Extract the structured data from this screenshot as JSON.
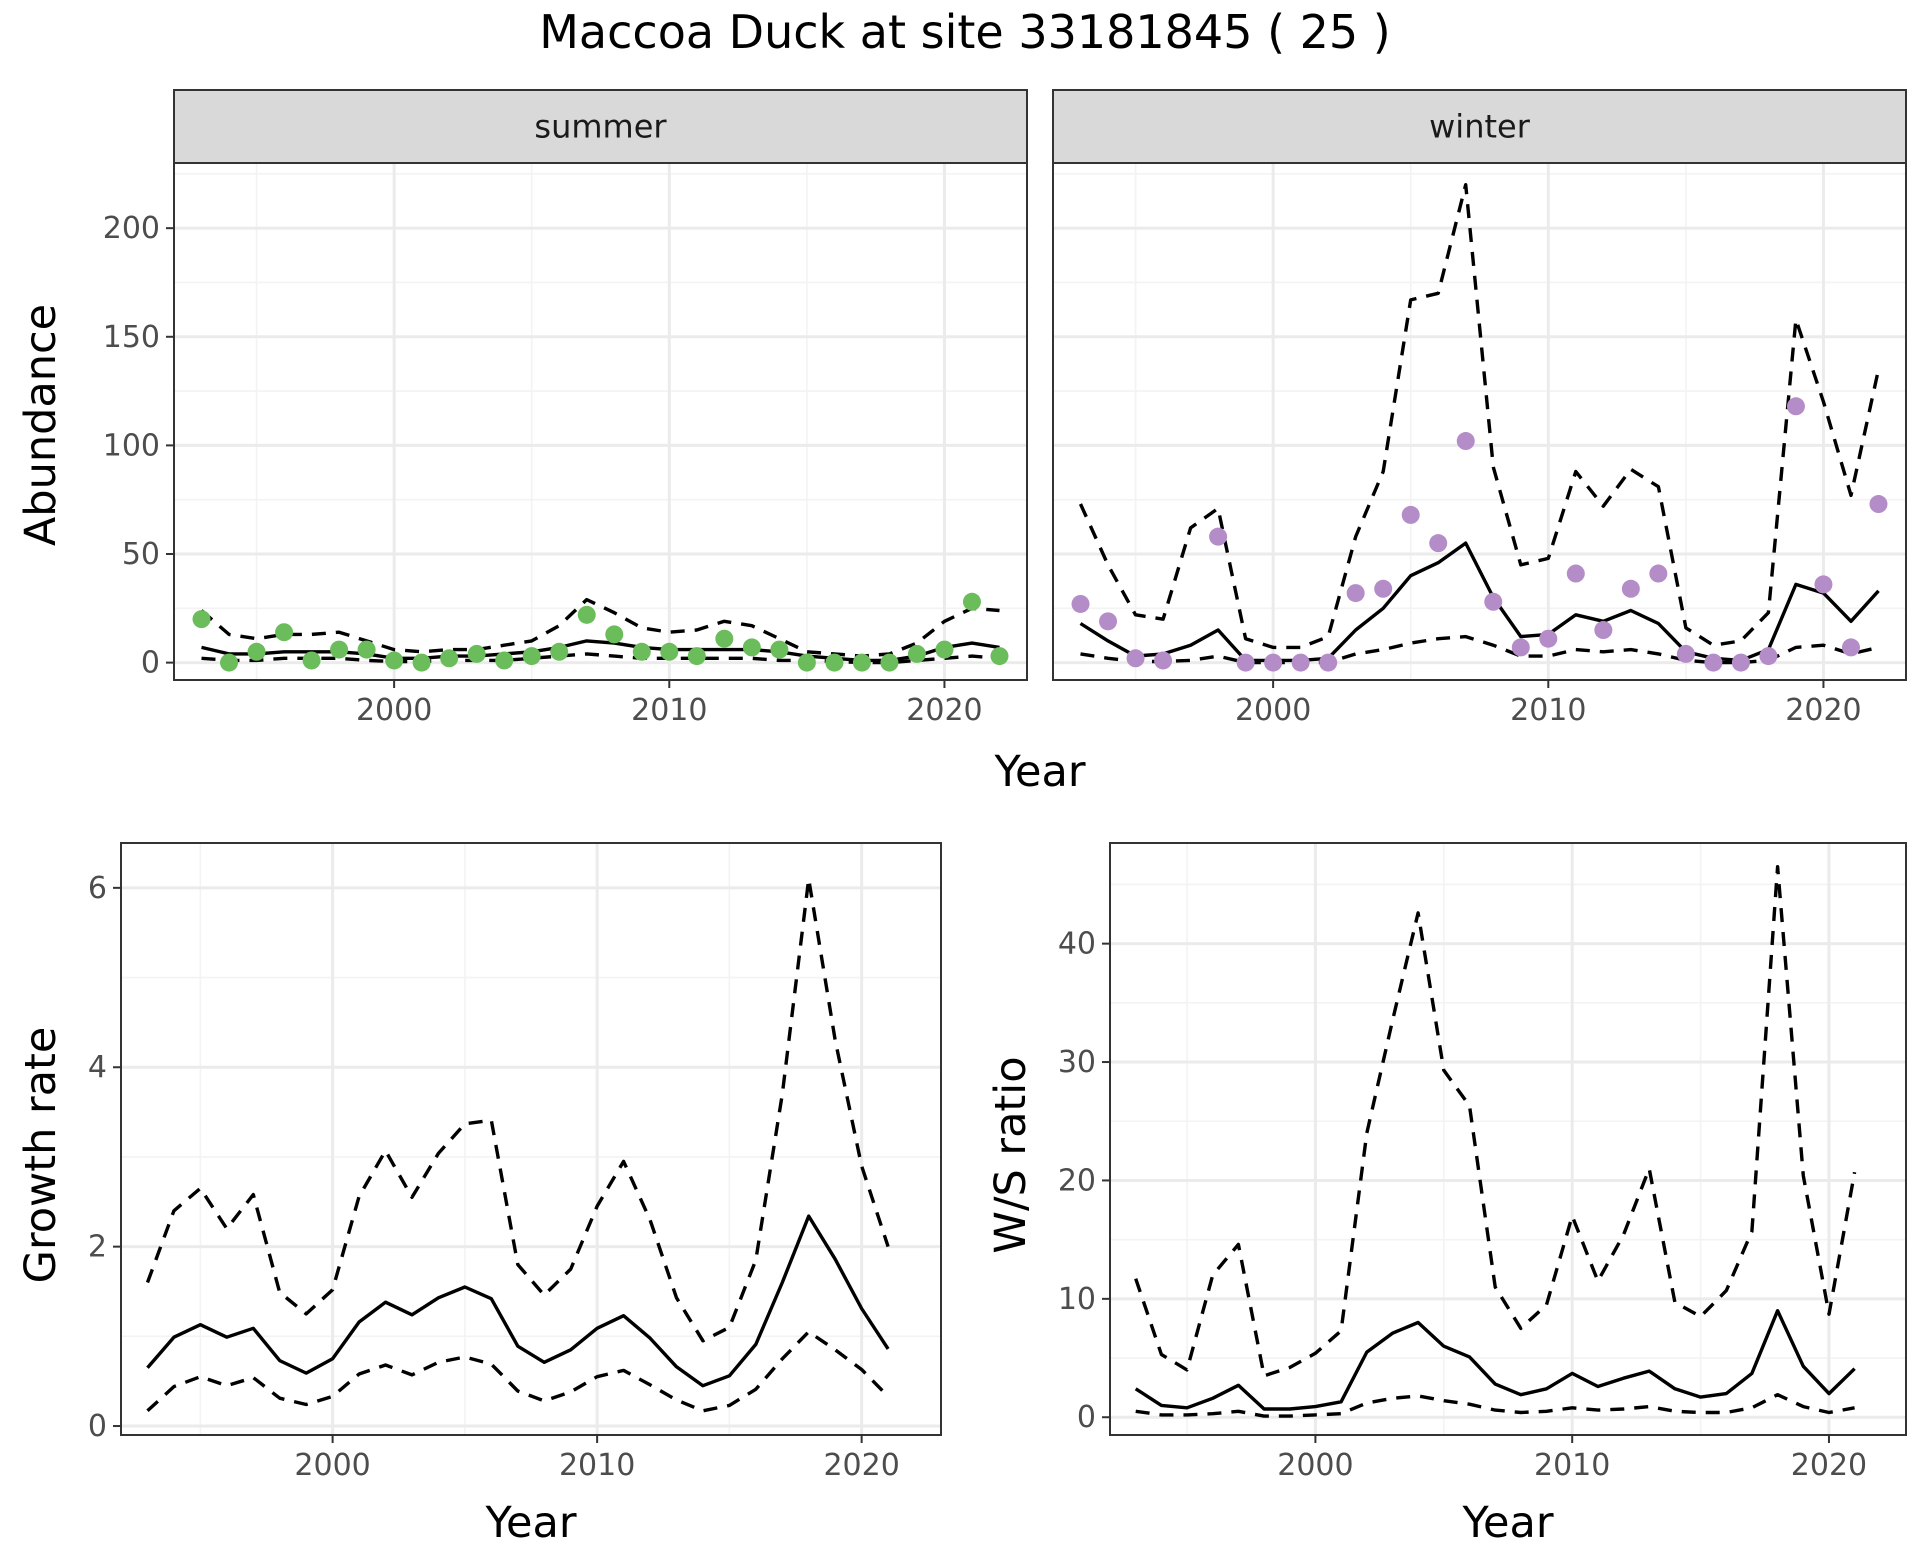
{
  "figure_title": "Maccoa Duck at site 33181845 ( 25 )",
  "colors": {
    "summer_points": "#6abd5a",
    "winter_points": "#b48cc8",
    "lines": "#000000"
  },
  "chart_data": [
    {
      "id": "abundance-summer",
      "type": "line",
      "strip": "summer",
      "xlabel": "Year",
      "ylabel": "Abundance",
      "xlim": [
        1992,
        2023
      ],
      "ylim": [
        -8,
        230
      ],
      "xticks": [
        2000,
        2010,
        2020
      ],
      "yticks": [
        0,
        50,
        100,
        150,
        200
      ],
      "grid": true,
      "x": [
        1993,
        1994,
        1995,
        1996,
        1997,
        1998,
        1999,
        2000,
        2001,
        2002,
        2003,
        2004,
        2005,
        2006,
        2007,
        2008,
        2009,
        2010,
        2011,
        2012,
        2013,
        2014,
        2015,
        2016,
        2017,
        2018,
        2019,
        2020,
        2021,
        2022
      ],
      "series": [
        {
          "role": "estimate",
          "style": "solid",
          "values": [
            7,
            4,
            4,
            5,
            5,
            5,
            4,
            2,
            2,
            3,
            3,
            4,
            5,
            7,
            10,
            9,
            7,
            6,
            6,
            6,
            6,
            5,
            3,
            2,
            1,
            1,
            3,
            7,
            9,
            7
          ]
        },
        {
          "role": "upper",
          "style": "dashed",
          "values": [
            24,
            13,
            11,
            13,
            13,
            14,
            10,
            6,
            5,
            6,
            6,
            8,
            10,
            17,
            29,
            23,
            16,
            14,
            15,
            19,
            17,
            11,
            5,
            4,
            3,
            4,
            9,
            19,
            25,
            24
          ]
        },
        {
          "role": "lower",
          "style": "dashed",
          "values": [
            2,
            1,
            1,
            2,
            2,
            2,
            1,
            0.5,
            0.5,
            1,
            1,
            1,
            2,
            3,
            4,
            3,
            2,
            2,
            2,
            2,
            2,
            1,
            1,
            0.5,
            0,
            0,
            1,
            2,
            3,
            2
          ]
        },
        {
          "role": "observed",
          "style": "points",
          "values": [
            20,
            0,
            5,
            14,
            1,
            6,
            6,
            1,
            0,
            2,
            4,
            1,
            3,
            5,
            22,
            13,
            5,
            5,
            3,
            11,
            7,
            6,
            0,
            0,
            0,
            0,
            4,
            6,
            28,
            3
          ]
        }
      ]
    },
    {
      "id": "abundance-winter",
      "type": "line",
      "strip": "winter",
      "xlabel": "Year",
      "ylabel": "Abundance",
      "xlim": [
        1992,
        2023
      ],
      "ylim": [
        -8,
        230
      ],
      "xticks": [
        2000,
        2010,
        2020
      ],
      "yticks": [
        0,
        50,
        100,
        150,
        200
      ],
      "grid": true,
      "x": [
        1993,
        1994,
        1995,
        1996,
        1997,
        1998,
        1999,
        2000,
        2001,
        2002,
        2003,
        2004,
        2005,
        2006,
        2007,
        2008,
        2009,
        2010,
        2011,
        2012,
        2013,
        2014,
        2015,
        2016,
        2017,
        2018,
        2019,
        2020,
        2021,
        2022
      ],
      "series": [
        {
          "role": "estimate",
          "style": "solid",
          "values": [
            18,
            10,
            3,
            4,
            8,
            15,
            1,
            1,
            1,
            2,
            15,
            25,
            40,
            46,
            55,
            30,
            12,
            13,
            22,
            19,
            24,
            18,
            5,
            2,
            1,
            6,
            36,
            32,
            19,
            33
          ]
        },
        {
          "role": "upper",
          "style": "dashed",
          "values": [
            73,
            45,
            22,
            20,
            62,
            71,
            11,
            7,
            7,
            12,
            58,
            88,
            167,
            170,
            220,
            90,
            45,
            48,
            88,
            72,
            89,
            81,
            16,
            8,
            10,
            23,
            158,
            120,
            77,
            135
          ]
        },
        {
          "role": "lower",
          "style": "dashed",
          "values": [
            4,
            2,
            0.5,
            0.5,
            1,
            3,
            0,
            0,
            0,
            0,
            4,
            6,
            9,
            11,
            12,
            8,
            3,
            3,
            6,
            5,
            6,
            4,
            1,
            0,
            0,
            1,
            7,
            8,
            4,
            7
          ]
        },
        {
          "role": "observed",
          "style": "points",
          "values": [
            27,
            19,
            2,
            1,
            null,
            58,
            0,
            0,
            0,
            0,
            32,
            34,
            68,
            55,
            102,
            28,
            7,
            11,
            41,
            15,
            34,
            41,
            4,
            0,
            0,
            3,
            118,
            36,
            7,
            73
          ]
        }
      ]
    },
    {
      "id": "growth-rate",
      "type": "line",
      "xlabel": "Year",
      "ylabel": "Growth rate",
      "xlim": [
        1992,
        2023
      ],
      "ylim": [
        -0.1,
        6.5
      ],
      "xticks": [
        2000,
        2010,
        2020
      ],
      "yticks": [
        0,
        2,
        4,
        6
      ],
      "grid": true,
      "x": [
        1993,
        1994,
        1995,
        1996,
        1997,
        1998,
        1999,
        2000,
        2001,
        2002,
        2003,
        2004,
        2005,
        2006,
        2007,
        2008,
        2009,
        2010,
        2011,
        2012,
        2013,
        2014,
        2015,
        2016,
        2017,
        2018,
        2019,
        2020,
        2021
      ],
      "series": [
        {
          "role": "estimate",
          "style": "solid",
          "values": [
            0.65,
            0.99,
            1.13,
            0.99,
            1.09,
            0.73,
            0.59,
            0.75,
            1.16,
            1.38,
            1.24,
            1.43,
            1.55,
            1.42,
            0.89,
            0.71,
            0.85,
            1.09,
            1.23,
            0.98,
            0.66,
            0.45,
            0.56,
            0.91,
            1.6,
            2.34,
            1.86,
            1.31,
            0.86
          ]
        },
        {
          "role": "upper",
          "style": "dashed",
          "values": [
            1.6,
            2.4,
            2.65,
            2.2,
            2.58,
            1.49,
            1.25,
            1.52,
            2.56,
            3.07,
            2.55,
            3.04,
            3.37,
            3.41,
            1.8,
            1.46,
            1.75,
            2.45,
            2.95,
            2.3,
            1.43,
            0.95,
            1.1,
            1.85,
            3.7,
            6.1,
            4.3,
            2.9,
            2.0
          ]
        },
        {
          "role": "lower",
          "style": "dashed",
          "values": [
            0.17,
            0.44,
            0.55,
            0.45,
            0.54,
            0.31,
            0.24,
            0.33,
            0.58,
            0.68,
            0.57,
            0.71,
            0.77,
            0.69,
            0.39,
            0.28,
            0.38,
            0.55,
            0.62,
            0.46,
            0.29,
            0.17,
            0.23,
            0.41,
            0.75,
            1.05,
            0.85,
            0.63,
            0.33
          ]
        }
      ]
    },
    {
      "id": "ws-ratio",
      "type": "line",
      "xlabel": "Year",
      "ylabel": "W/S ratio",
      "xlim": [
        1992,
        2023
      ],
      "ylim": [
        -1.5,
        48.5
      ],
      "xticks": [
        2000,
        2010,
        2020
      ],
      "yticks": [
        0,
        10,
        20,
        30,
        40
      ],
      "grid": true,
      "x": [
        1993,
        1994,
        1995,
        1996,
        1997,
        1998,
        1999,
        2000,
        2001,
        2002,
        2003,
        2004,
        2005,
        2006,
        2007,
        2008,
        2009,
        2010,
        2011,
        2012,
        2013,
        2014,
        2015,
        2016,
        2017,
        2018,
        2019,
        2020,
        2021
      ],
      "series": [
        {
          "role": "estimate",
          "style": "solid",
          "values": [
            2.4,
            1.0,
            0.8,
            1.6,
            2.7,
            0.7,
            0.7,
            0.9,
            1.3,
            5.5,
            7.1,
            8.0,
            6.0,
            5.1,
            2.8,
            1.9,
            2.4,
            3.7,
            2.6,
            3.3,
            3.9,
            2.4,
            1.7,
            2.0,
            3.7,
            9.0,
            4.3,
            2.0,
            4.1
          ]
        },
        {
          "role": "upper",
          "style": "dashed",
          "values": [
            11.7,
            5.3,
            4.0,
            12.0,
            14.6,
            3.5,
            4.2,
            5.4,
            7.3,
            24.0,
            33.5,
            42.6,
            29.3,
            26.3,
            11.0,
            7.5,
            9.5,
            17.0,
            11.5,
            15.4,
            21.0,
            9.7,
            8.5,
            10.7,
            15.7,
            46.5,
            20.4,
            8.7,
            20.7
          ]
        },
        {
          "role": "lower",
          "style": "dashed",
          "values": [
            0.5,
            0.2,
            0.2,
            0.3,
            0.5,
            0.1,
            0.1,
            0.2,
            0.3,
            1.2,
            1.6,
            1.8,
            1.4,
            1.1,
            0.6,
            0.4,
            0.5,
            0.8,
            0.6,
            0.7,
            0.9,
            0.5,
            0.4,
            0.4,
            0.8,
            1.9,
            0.9,
            0.4,
            0.8
          ]
        }
      ]
    }
  ]
}
